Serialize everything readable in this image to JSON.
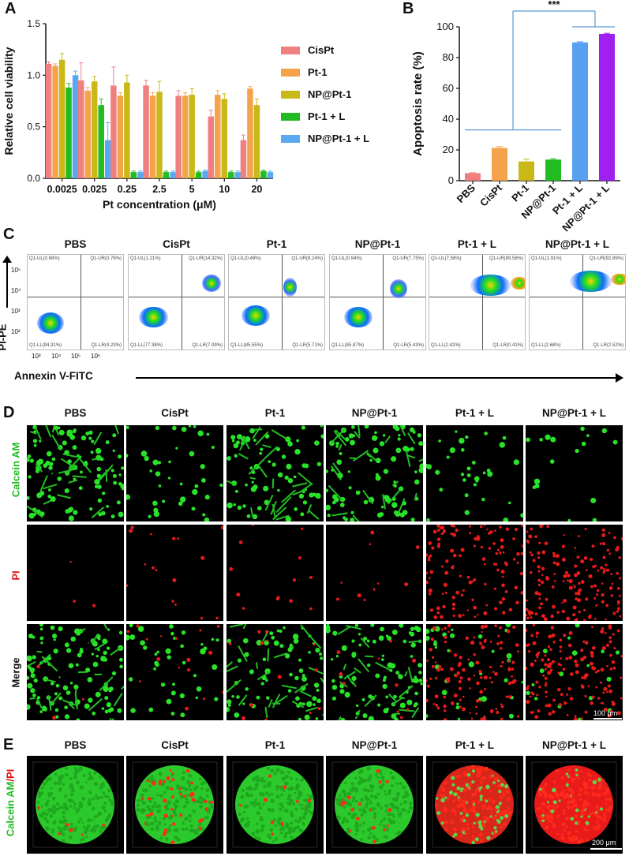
{
  "panel_labels": {
    "a": "A",
    "b": "B",
    "c": "C",
    "d": "D",
    "e": "E"
  },
  "groups": [
    "PBS",
    "CisPt",
    "Pt-1",
    "NP@Pt-1",
    "Pt-1 + L",
    "NP@Pt-1 + L"
  ],
  "colors": {
    "CisPt": "#f08080",
    "Pt-1": "#f4a34a",
    "NP@Pt-1": "#c8b818",
    "Pt-1 + L": "#22bb22",
    "NP@Pt-1 + L": "#5aa8f0",
    "PBS": "#f08080",
    "baseline": "#5b9bd5",
    "Pt-1 + L b": "#5aa0f0",
    "NP@Pt-1 + L b": "#a020f0"
  },
  "chart_data": [
    {
      "type": "bar",
      "xlabel": "Pt concentration (μM)",
      "ylabel": "Relative cell viability",
      "ylim": [
        0,
        1.5
      ],
      "yticks": [
        "0.0",
        "0.5",
        "1.0",
        "1.5"
      ],
      "categories": [
        "0.0025",
        "0.025",
        "0.25",
        "2.5",
        "5",
        "10",
        "20"
      ],
      "series": [
        {
          "name": "CisPt",
          "values": [
            1.11,
            0.95,
            0.9,
            0.9,
            0.8,
            0.6,
            0.37
          ],
          "errors": [
            0.02,
            0.17,
            0.18,
            0.05,
            0.05,
            0.06,
            0.05
          ]
        },
        {
          "name": "Pt-1",
          "values": [
            1.09,
            0.85,
            0.8,
            0.8,
            0.8,
            0.81,
            0.87
          ],
          "errors": [
            0.02,
            0.03,
            0.03,
            0.03,
            0.03,
            0.04,
            0.02
          ]
        },
        {
          "name": "NP@Pt-1",
          "values": [
            1.15,
            0.94,
            0.93,
            0.84,
            0.81,
            0.77,
            0.71
          ],
          "errors": [
            0.06,
            0.05,
            0.07,
            0.1,
            0.06,
            0.05,
            0.06
          ]
        },
        {
          "name": "Pt-1 + L",
          "values": [
            0.88,
            0.71,
            0.06,
            0.06,
            0.06,
            0.06,
            0.07
          ],
          "errors": [
            0.04,
            0.06,
            0.01,
            0.01,
            0.01,
            0.01,
            0.01
          ]
        },
        {
          "name": "NP@Pt-1 + L",
          "values": [
            1.0,
            0.37,
            0.06,
            0.06,
            0.07,
            0.06,
            0.06
          ],
          "errors": [
            0.04,
            0.17,
            0.01,
            0.01,
            0.01,
            0.01,
            0.01
          ]
        }
      ],
      "legend_position": "right"
    },
    {
      "type": "bar",
      "ylabel": "Apoptosis rate (%)",
      "ylim": [
        0,
        100
      ],
      "yticks": [
        "0",
        "20",
        "40",
        "60",
        "80",
        "100"
      ],
      "categories": [
        "PBS",
        "CisPt",
        "Pt-1",
        "NP@Pt-1",
        "Pt-1 + L",
        "NP@Pt-1 + L"
      ],
      "values": [
        4.9,
        21.3,
        12.5,
        13.7,
        89.9,
        95.4
      ],
      "errors": [
        0.3,
        0.8,
        1.5,
        0.5,
        0.4,
        0.4
      ],
      "significance": "***"
    }
  ],
  "flow": {
    "xlabel": "Annexin V-FITC",
    "ylabel": "PI-PE",
    "xticks": [
      "10³",
      "10⁴",
      "10⁵",
      "10⁶"
    ],
    "yticks": [
      "10⁵",
      "10⁴",
      "10³",
      "10²"
    ],
    "plots": [
      {
        "ul": "Q1-UL(0.68%)",
        "ur": "Q1-UR(0.76%)",
        "ll": "Q1-LL(94.31%)",
        "lr": "Q1-LR(4.23%)"
      },
      {
        "ul": "Q1-UL(1.21%)",
        "ur": "Q1-UR(14.32%)",
        "ll": "Q1-LL(77.38%)",
        "lr": "Q1-LR(7.09%)"
      },
      {
        "ul": "Q1-UL(0.49%)",
        "ur": "Q1-UR(8.24%)",
        "ll": "Q1-LL(85.55%)",
        "lr": "Q1-LR(5.71%)"
      },
      {
        "ul": "Q1-UL(0.94%)",
        "ur": "Q1-UR(7.75%)",
        "ll": "Q1-LL(85.87%)",
        "lr": "Q1-LR(5.43%)"
      },
      {
        "ul": "Q1-UL(7.58%)",
        "ur": "Q1-UR(89.58%)",
        "ll": "Q1-LL(2.42%)",
        "lr": "Q1-LR(0.41%)"
      },
      {
        "ul": "Q1-UL(1.91%)",
        "ur": "Q1-UR(92.89%)",
        "ll": "Q1-LL(2.68%)",
        "lr": "Q1-LR(2.52%)"
      }
    ]
  },
  "microscopy": {
    "rows": [
      "Calcein AM",
      "PI",
      "Merge"
    ],
    "scale": "100 μm"
  },
  "spheroid": {
    "row_label_a": "Calcein AM",
    "row_label_b": "/PI",
    "scale": "200 μm"
  }
}
